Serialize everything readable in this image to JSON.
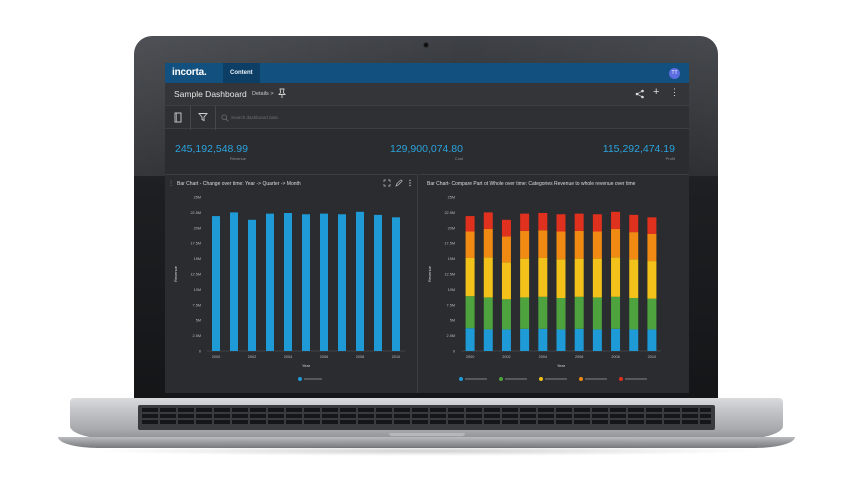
{
  "app": {
    "logo": "incorta.",
    "nav_tab": "Content",
    "user_initials": "TT"
  },
  "dashboard": {
    "title": "Sample Dashboard",
    "details_label": "Details >",
    "search_placeholder": "Search dashboard data"
  },
  "kpis": [
    {
      "value": "245,192,548.99",
      "label": "Revenue"
    },
    {
      "value": "129,900,074.80",
      "label": "Cost"
    },
    {
      "value": "115,292,474.19",
      "label": "Profit"
    }
  ],
  "colors": {
    "accent": "#2aa3de",
    "topbar": "#12507f",
    "series": [
      "#1e9ad6",
      "#4fa33f",
      "#f2c21a",
      "#f08a13",
      "#e0301e"
    ]
  },
  "icons": {
    "pin": "pin-icon",
    "share": "share-icon",
    "add": "plus-icon",
    "more": "more-vertical-icon",
    "book": "book-icon",
    "filter": "filter-icon",
    "search": "search-icon",
    "expand": "expand-icon",
    "edit": "edit-icon",
    "drag": "drag-handle-icon"
  },
  "chart_data": [
    {
      "type": "bar",
      "title": "Bar Chart - Change over time: Year -> Quarter -> Month",
      "xlabel": "Year",
      "ylabel": "Revenue",
      "x": [
        2000,
        2001,
        2002,
        2003,
        2004,
        2005,
        2006,
        2007,
        2008,
        2009,
        2010
      ],
      "x_tick_labels": [
        "2000",
        "2002",
        "2004",
        "2006",
        "2008",
        "2010"
      ],
      "y_tick_labels": [
        "0",
        "2.5M",
        "5M",
        "7.5M",
        "10M",
        "12.5M",
        "15M",
        "17.5M",
        "20M",
        "22.5M",
        "25M"
      ],
      "ylim": [
        0,
        25000000
      ],
      "values": [
        21900000,
        22500000,
        21300000,
        22300000,
        22400000,
        22200000,
        22300000,
        22200000,
        22600000,
        22100000,
        21700000
      ],
      "grid": false,
      "legend_position": "bottom"
    },
    {
      "type": "bar",
      "stacked": true,
      "title": "Bar Chart- Compare Part ot Whole over time: Categories Revenue to whole revenue over time",
      "xlabel": "Year",
      "ylabel": "Revenue",
      "x": [
        2000,
        2001,
        2002,
        2003,
        2004,
        2005,
        2006,
        2007,
        2008,
        2009,
        2010
      ],
      "x_tick_labels": [
        "2000",
        "2002",
        "2004",
        "2006",
        "2008",
        "2010"
      ],
      "y_tick_labels": [
        "0",
        "2.5M",
        "5M",
        "7.5M",
        "10M",
        "12.5M",
        "15M",
        "17.5M",
        "20M",
        "22.5M",
        "25M"
      ],
      "ylim": [
        0,
        25000000
      ],
      "series": [
        {
          "values": [
            3700000,
            3500000,
            3500000,
            3600000,
            3600000,
            3500000,
            3600000,
            3500000,
            3600000,
            3500000,
            3500000
          ]
        },
        {
          "values": [
            5200000,
            5200000,
            4900000,
            5100000,
            5200000,
            5100000,
            5200000,
            5200000,
            5200000,
            5100000,
            5000000
          ]
        },
        {
          "values": [
            6200000,
            6500000,
            6000000,
            6300000,
            6300000,
            6300000,
            6200000,
            6300000,
            6400000,
            6300000,
            6100000
          ]
        },
        {
          "values": [
            4300000,
            4600000,
            4200000,
            4500000,
            4500000,
            4500000,
            4500000,
            4400000,
            4600000,
            4400000,
            4400000
          ]
        },
        {
          "values": [
            2500000,
            2700000,
            2700000,
            2800000,
            2800000,
            2800000,
            2800000,
            2800000,
            2800000,
            2800000,
            2700000
          ]
        }
      ],
      "grid": false,
      "legend_position": "bottom"
    }
  ]
}
